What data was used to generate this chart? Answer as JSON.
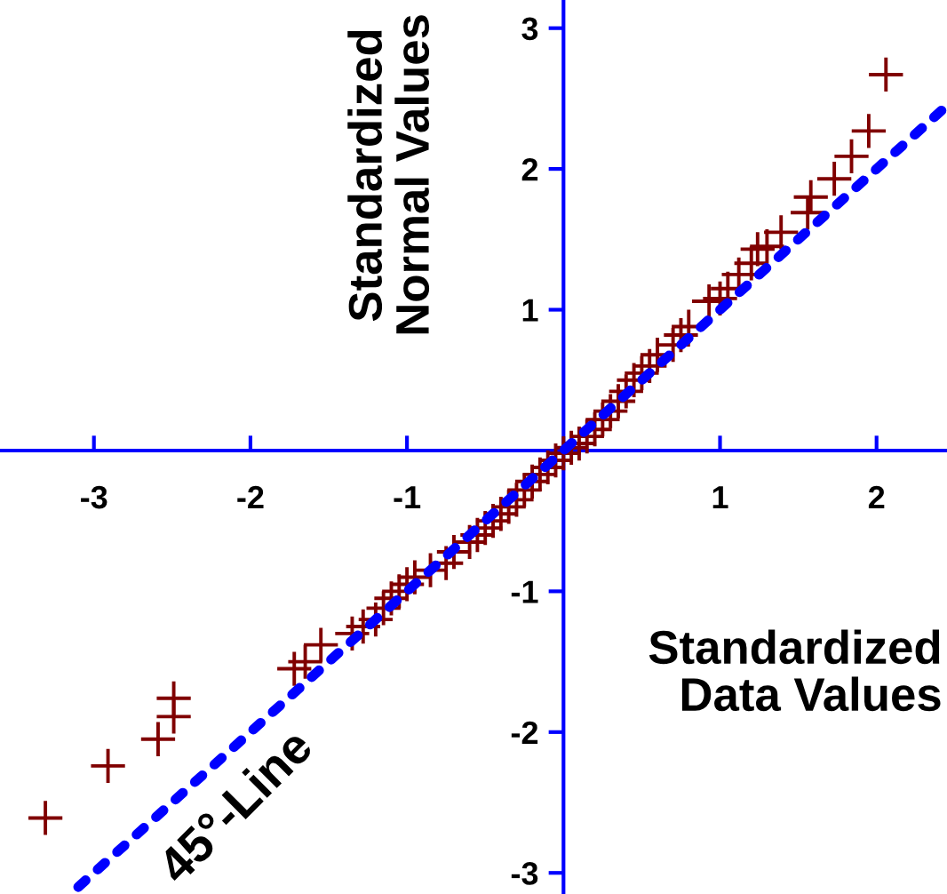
{
  "chart_data": {
    "type": "scatter",
    "xlabel": "Standardized\nData Values",
    "ylabel": "Standardized\nNormal Values",
    "xlim": [
      -3.6,
      2.45
    ],
    "ylim": [
      -3.15,
      3.2
    ],
    "xticks": [
      -3,
      -2,
      -1,
      1,
      2
    ],
    "yticks": [
      -3,
      -2,
      -1,
      1,
      2,
      3
    ],
    "grid": false,
    "annotations": [
      {
        "text": "45°-Line",
        "x": -2.3,
        "y": -2.3
      }
    ],
    "series": [
      {
        "marker": "cross",
        "color": "#800000",
        "x": [
          -3.31,
          -2.91,
          -2.59,
          -2.49,
          -2.49,
          -1.72,
          -1.65,
          -1.55,
          -1.35,
          -1.28,
          -1.2,
          -1.15,
          -1.1,
          -1.05,
          -1.0,
          -0.95,
          -0.85,
          -0.75,
          -0.7,
          -0.6,
          -0.55,
          -0.5,
          -0.45,
          -0.4,
          -0.35,
          -0.3,
          -0.25,
          -0.2,
          -0.15,
          -0.1,
          -0.05,
          0.0,
          0.05,
          0.1,
          0.15,
          0.2,
          0.25,
          0.3,
          0.35,
          0.4,
          0.45,
          0.5,
          0.55,
          0.6,
          0.7,
          0.75,
          0.8,
          0.93,
          1.0,
          1.05,
          1.12,
          1.2,
          1.24,
          1.3,
          1.39,
          1.56,
          1.58,
          1.73,
          1.84,
          1.95,
          2.06
        ],
        "values": [
          -2.61,
          -2.24,
          -2.05,
          -1.89,
          -1.76,
          -1.55,
          -1.5,
          -1.38,
          -1.3,
          -1.25,
          -1.2,
          -1.12,
          -1.05,
          -1.0,
          -0.95,
          -0.9,
          -0.85,
          -0.8,
          -0.72,
          -0.65,
          -0.6,
          -0.55,
          -0.5,
          -0.45,
          -0.4,
          -0.35,
          -0.28,
          -0.22,
          -0.17,
          -0.12,
          -0.07,
          -0.02,
          0.02,
          0.05,
          0.1,
          0.15,
          0.22,
          0.28,
          0.35,
          0.42,
          0.5,
          0.55,
          0.6,
          0.68,
          0.75,
          0.82,
          0.88,
          1.06,
          1.08,
          1.15,
          1.25,
          1.33,
          1.43,
          1.45,
          1.55,
          1.69,
          1.8,
          1.93,
          2.09,
          2.27,
          2.67
        ]
      },
      {
        "type": "line",
        "line_style": "dotted",
        "color": "#0000ff",
        "x": [
          -3.1,
          2.45
        ],
        "values": [
          -3.1,
          2.45
        ]
      }
    ]
  }
}
